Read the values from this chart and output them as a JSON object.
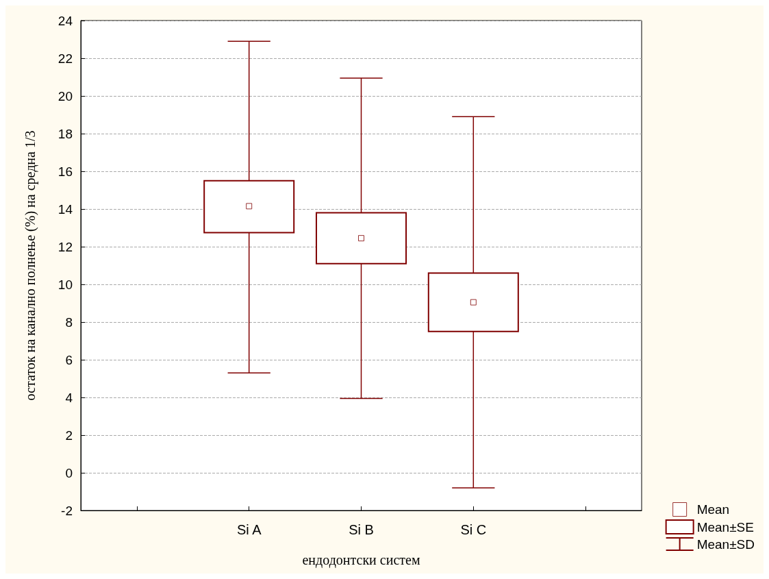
{
  "chart_data": {
    "type": "box",
    "xlabel": "ендодонтски систем",
    "ylabel": "остаток на канално полнење (%) на средна 1/3",
    "categories": [
      null,
      "Si A",
      "Si B",
      "Si C",
      null
    ],
    "series": [
      {
        "name": "Mean",
        "color": "#800000",
        "type": "scatter",
        "marker": "square",
        "x": [
          "Si A",
          "Si B",
          "Si C"
        ],
        "values": [
          14.15,
          12.45,
          9.05
        ]
      },
      {
        "name": "Mean±SE",
        "color": "#800000",
        "boxes": [
          null,
          {
            "low": 5.3,
            "q1": 12.75,
            "q3": 15.5,
            "high": 22.9
          },
          {
            "low": 3.95,
            "q1": 11.1,
            "q3": 13.8,
            "high": 20.95
          },
          {
            "low": -0.8,
            "q1": 7.5,
            "q3": 10.6,
            "high": 18.9
          },
          null
        ]
      }
    ],
    "annotations": [
      "Mean±SD"
    ],
    "ylim": [
      -2,
      24
    ],
    "yticks": [
      -2,
      0,
      2,
      4,
      6,
      8,
      10,
      12,
      14,
      16,
      18,
      20,
      22,
      24
    ],
    "grid": "y",
    "legend": "bottom right"
  }
}
